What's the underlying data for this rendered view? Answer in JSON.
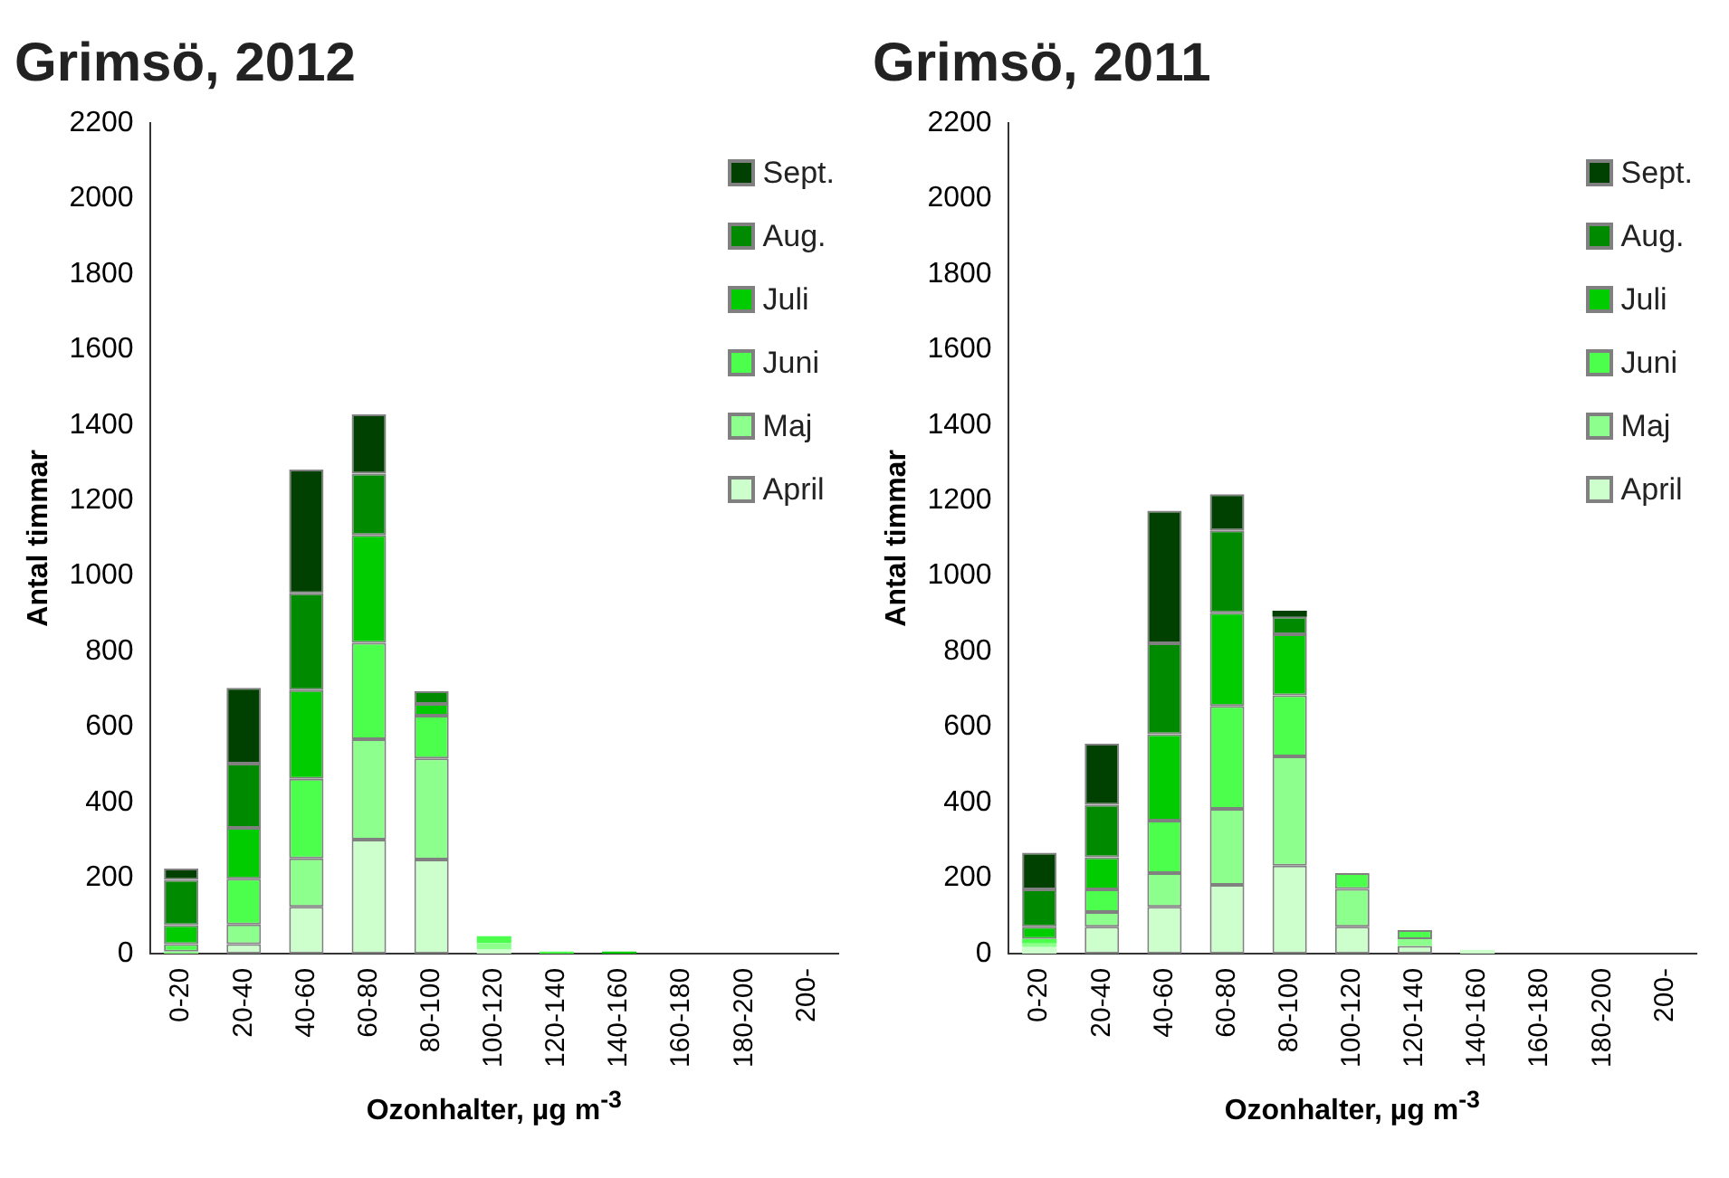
{
  "chart_data": [
    {
      "type": "bar",
      "stacked": true,
      "title": "Grimsö, 2012",
      "xlabel": "Ozonhalter, µg m$^{-3}$",
      "ylabel": "Antal timmar",
      "categories": [
        "0-20",
        "20-40",
        "40-60",
        "60-80",
        "80-100",
        "100-120",
        "120-140",
        "140-160",
        "160-180",
        "180-200",
        "200-"
      ],
      "ylim": [
        0,
        2200
      ],
      "yticks": [
        0,
        200,
        400,
        600,
        800,
        1000,
        1200,
        1400,
        1600,
        1800,
        2000,
        2200
      ],
      "grid": false,
      "legend": "top right",
      "series": [
        {
          "name": "April",
          "color": "#ccffcc",
          "values": [
            null,
            25,
            124,
            302,
            249,
            12,
            0,
            0,
            0,
            0,
            0
          ]
        },
        {
          "name": "Maj",
          "color": "#8cff8c",
          "values": [
            5,
            52,
            128,
            266,
            268,
            16,
            0,
            0,
            0,
            0,
            0
          ]
        },
        {
          "name": "Juni",
          "color": "#4cff4c",
          "values": [
            20,
            121,
            211,
            255,
            113,
            18,
            5,
            0,
            0,
            0,
            0
          ]
        },
        {
          "name": "Juli",
          "color": "#00cc00",
          "values": [
            50,
            135,
            235,
            286,
            31,
            0,
            0,
            5,
            0,
            0,
            0
          ]
        },
        {
          "name": "Aug.",
          "color": "#008a00",
          "values": [
            120,
            170,
            256,
            162,
            34,
            0,
            0,
            0,
            0,
            0,
            0
          ]
        },
        {
          "name": "Sept.",
          "color": "#004000",
          "values": [
            30,
            201,
            328,
            157,
            0,
            0,
            0,
            0,
            0,
            0,
            0
          ]
        }
      ]
    },
    {
      "type": "bar",
      "stacked": true,
      "title": "Grimsö, 2011",
      "xlabel": "Ozonhalter, µg m$^{-3}$",
      "ylabel": "Antal timmar",
      "categories": [
        "0-20",
        "20-40",
        "40-60",
        "60-80",
        "80-100",
        "100-120",
        "120-140",
        "140-160",
        "160-180",
        "180-200",
        "200-"
      ],
      "ylim": [
        0,
        2200
      ],
      "yticks": [
        0,
        200,
        400,
        600,
        800,
        1000,
        1200,
        1400,
        1600,
        1800,
        2000,
        2200
      ],
      "grid": false,
      "legend": "top right",
      "series": [
        {
          "name": "April",
          "color": "#ccffcc",
          "values": [
            17,
            71,
            124,
            182,
            233,
            71,
            20,
            10,
            0,
            0,
            0
          ]
        },
        {
          "name": "Maj",
          "color": "#8cff8c",
          "values": [
            10,
            39,
            89,
            201,
            289,
            100,
            18,
            0,
            0,
            0,
            0
          ]
        },
        {
          "name": "Juni",
          "color": "#4cff4c",
          "values": [
            12,
            60,
            139,
            273,
            162,
            42,
            24,
            0,
            0,
            0,
            0
          ]
        },
        {
          "name": "Juli",
          "color": "#00cc00",
          "values": [
            32,
            85,
            229,
            247,
            162,
            0,
            0,
            0,
            0,
            0,
            0
          ]
        },
        {
          "name": "Aug.",
          "color": "#008a00",
          "values": [
            99,
            139,
            241,
            218,
            46,
            0,
            0,
            0,
            0,
            0,
            0
          ]
        },
        {
          "name": "Sept.",
          "color": "#004000",
          "values": [
            97,
            162,
            351,
            96,
            16,
            0,
            0,
            0,
            0,
            0,
            0
          ]
        }
      ]
    }
  ]
}
